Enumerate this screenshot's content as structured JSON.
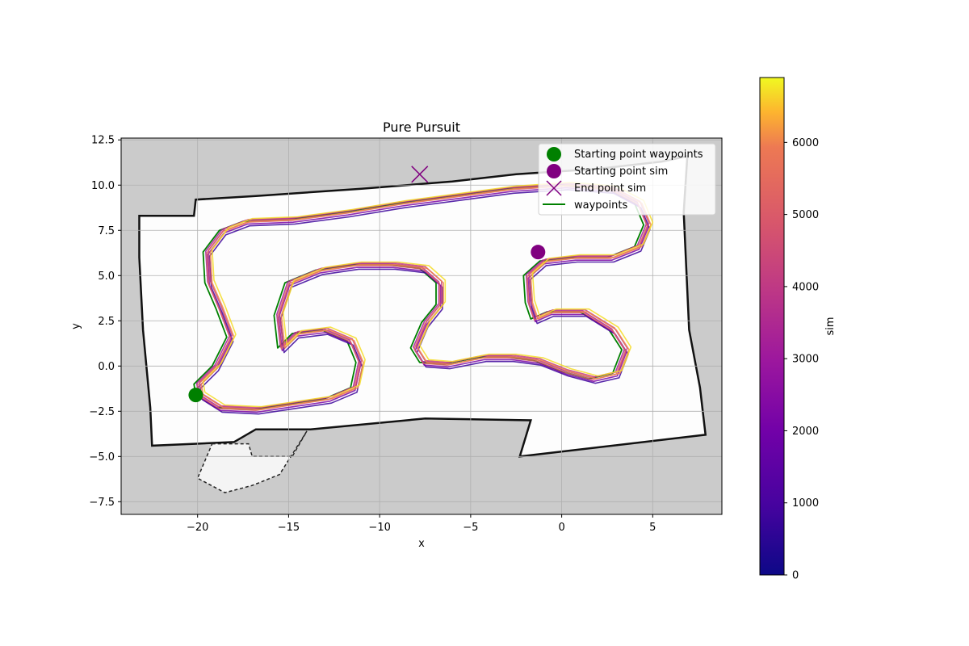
{
  "chart_data": {
    "type": "line",
    "title": "Pure Pursuit",
    "xlabel": "x",
    "ylabel": "y",
    "xlim": [
      -24.2,
      8.8
    ],
    "ylim": [
      -8.2,
      12.6
    ],
    "xticks": [
      -20,
      -15,
      -10,
      -5,
      0,
      5
    ],
    "yticks": [
      -7.5,
      -5.0,
      -2.5,
      0.0,
      2.5,
      5.0,
      7.5,
      10.0,
      12.5
    ],
    "xtick_labels": [
      "−20",
      "−15",
      "−10",
      "−5",
      "0",
      "5"
    ],
    "ytick_labels": [
      "−7.5",
      "−5.0",
      "−2.5",
      "0.0",
      "2.5",
      "5.0",
      "7.5",
      "10.0",
      "12.5"
    ],
    "grid": true,
    "legend_position": "top-right",
    "legend": [
      {
        "label": "Starting point waypoints",
        "marker": "circle",
        "color": "#008000"
      },
      {
        "label": "Starting point sim",
        "marker": "circle",
        "color": "#800080"
      },
      {
        "label": "End point sim",
        "marker": "x",
        "color": "#800080"
      },
      {
        "label": "waypoints",
        "marker": "line",
        "color": "#008000"
      }
    ],
    "start_waypoints": [
      -20.1,
      -1.6
    ],
    "start_sim": [
      -1.3,
      6.3
    ],
    "end_sim": [
      -7.8,
      10.6
    ],
    "waypoints": [
      [
        -20.1,
        -1.6
      ],
      [
        -19.0,
        -2.3
      ],
      [
        -17.0,
        -2.4
      ],
      [
        -15.0,
        -2.1
      ],
      [
        -13.0,
        -1.8
      ],
      [
        -11.6,
        -1.2
      ],
      [
        -11.3,
        0.2
      ],
      [
        -11.8,
        1.4
      ],
      [
        -13.2,
        2.0
      ],
      [
        -14.8,
        1.8
      ],
      [
        -15.6,
        1.0
      ],
      [
        -15.8,
        2.8
      ],
      [
        -15.2,
        4.6
      ],
      [
        -13.5,
        5.3
      ],
      [
        -11.5,
        5.6
      ],
      [
        -9.5,
        5.6
      ],
      [
        -7.8,
        5.4
      ],
      [
        -6.9,
        4.6
      ],
      [
        -6.9,
        3.4
      ],
      [
        -7.7,
        2.4
      ],
      [
        -8.3,
        1.0
      ],
      [
        -7.8,
        0.2
      ],
      [
        -6.5,
        0.1
      ],
      [
        -4.5,
        0.5
      ],
      [
        -3.0,
        0.5
      ],
      [
        -1.5,
        0.3
      ],
      [
        0.0,
        -0.3
      ],
      [
        1.5,
        -0.7
      ],
      [
        2.8,
        -0.4
      ],
      [
        3.3,
        0.9
      ],
      [
        2.6,
        2.0
      ],
      [
        1.0,
        3.0
      ],
      [
        -0.8,
        3.0
      ],
      [
        -1.7,
        2.6
      ],
      [
        -2.0,
        3.5
      ],
      [
        -2.1,
        5.0
      ],
      [
        -1.2,
        5.8
      ],
      [
        0.5,
        6.0
      ],
      [
        2.5,
        6.0
      ],
      [
        4.0,
        6.6
      ],
      [
        4.5,
        7.8
      ],
      [
        4.0,
        9.0
      ],
      [
        2.5,
        9.8
      ],
      [
        0.0,
        10.0
      ],
      [
        -3.0,
        9.8
      ],
      [
        -6.0,
        9.4
      ],
      [
        -9.0,
        9.0
      ],
      [
        -12.0,
        8.5
      ],
      [
        -15.0,
        8.1
      ],
      [
        -17.5,
        8.0
      ],
      [
        -18.8,
        7.5
      ],
      [
        -19.7,
        6.3
      ],
      [
        -19.6,
        4.6
      ],
      [
        -19.0,
        3.2
      ],
      [
        -18.4,
        1.6
      ],
      [
        -19.2,
        0.0
      ],
      [
        -20.2,
        -1.0
      ],
      [
        -20.1,
        -1.6
      ]
    ],
    "colorbar": {
      "label": "sim",
      "min": 0,
      "max": 6900,
      "ticks": [
        0,
        1000,
        2000,
        3000,
        4000,
        5000,
        6000
      ],
      "tick_labels": [
        "0",
        "1000",
        "2000",
        "3000",
        "4000",
        "5000",
        "6000"
      ],
      "colormap": "plasma"
    },
    "sim_series": [
      {
        "sim_value": 800,
        "offset": [
          0.35,
          -0.25
        ]
      },
      {
        "sim_value": 2200,
        "offset": [
          0.25,
          -0.15
        ]
      },
      {
        "sim_value": 3200,
        "offset": [
          0.15,
          0.05
        ]
      },
      {
        "sim_value": 4200,
        "offset": [
          0.3,
          0.1
        ]
      },
      {
        "sim_value": 5200,
        "offset": [
          0.2,
          -0.05
        ]
      },
      {
        "sim_value": 6000,
        "offset": [
          0.4,
          0.0
        ]
      },
      {
        "sim_value": 6700,
        "offset": [
          0.5,
          0.15
        ]
      }
    ],
    "map_outline": [
      [
        -23.2,
        8.3
      ],
      [
        -20.2,
        8.3
      ],
      [
        -20.1,
        9.2
      ],
      [
        -16.8,
        9.4
      ],
      [
        -11.0,
        9.8
      ],
      [
        -6.0,
        10.2
      ],
      [
        -2.5,
        10.6
      ],
      [
        2.0,
        10.9
      ],
      [
        5.5,
        11.3
      ],
      [
        6.9,
        11.6
      ],
      [
        6.7,
        8.5
      ],
      [
        7.0,
        2.0
      ],
      [
        7.6,
        -1.2
      ],
      [
        7.9,
        -3.8
      ],
      [
        -2.3,
        -5.0
      ],
      [
        -1.7,
        -3.0
      ],
      [
        -7.5,
        -2.9
      ],
      [
        -13.8,
        -3.5
      ],
      [
        -16.8,
        -3.5
      ],
      [
        -18.0,
        -4.2
      ],
      [
        -22.5,
        -4.4
      ],
      [
        -22.6,
        -2.3
      ],
      [
        -23.0,
        2.0
      ],
      [
        -23.2,
        6.0
      ]
    ],
    "map_lower_notch": [
      [
        -19.2,
        -4.3
      ],
      [
        -17.2,
        -4.3
      ],
      [
        -17.0,
        -5.0
      ],
      [
        -14.8,
        -5.0
      ],
      [
        -14.0,
        -3.6
      ],
      [
        -15.5,
        -6.0
      ],
      [
        -17.0,
        -6.6
      ],
      [
        -18.5,
        -7.0
      ],
      [
        -20.0,
        -6.2
      ]
    ]
  }
}
